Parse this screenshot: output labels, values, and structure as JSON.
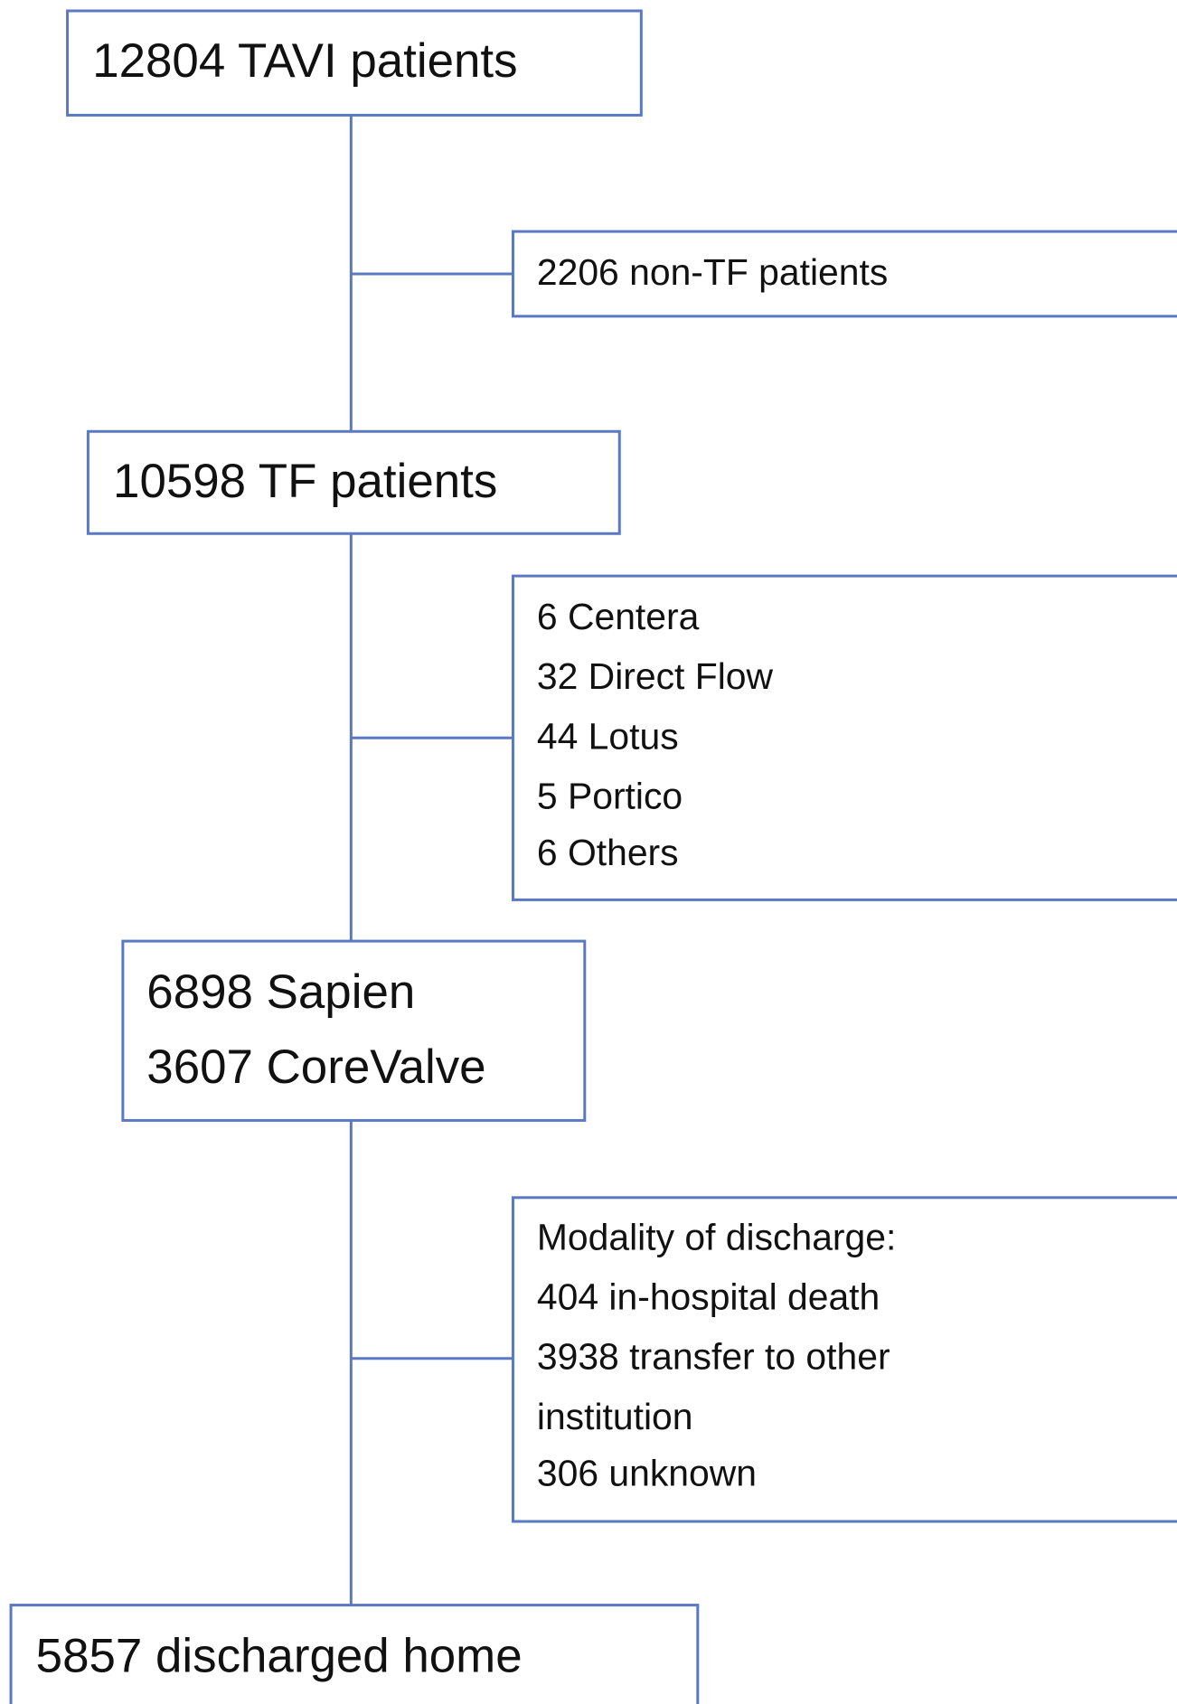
{
  "nodes": [
    {
      "lines": [
        "12804 TAVI patients"
      ]
    },
    {
      "lines": [
        "2206 non-TF patients"
      ]
    },
    {
      "lines": [
        "10598 TF patients"
      ]
    },
    {
      "lines": [
        "6 Centera",
        "32 Direct Flow",
        "44 Lotus",
        "5 Portico",
        "6 Others"
      ]
    },
    {
      "lines": [
        "6898 Sapien",
        "3607 CoreValve"
      ]
    },
    {
      "lines": [
        "Modality of discharge:",
        "404 in-hospital death",
        "3938 transfer to other",
        "institution",
        "306 unknown"
      ]
    },
    {
      "lines": [
        "5857 discharged home"
      ]
    }
  ]
}
